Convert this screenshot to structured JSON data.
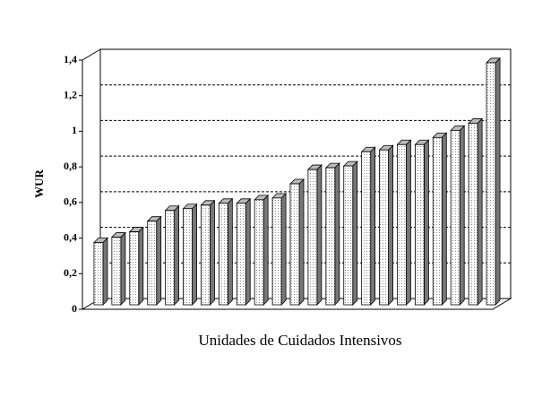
{
  "chart_data": {
    "type": "bar3d",
    "ylabel": "WUR",
    "xlabel": "Unidades de Cuidados Intensivos",
    "categories": [
      null,
      null,
      null,
      null,
      null,
      null,
      null,
      null,
      null,
      null,
      null,
      null,
      null,
      null,
      null,
      null,
      null,
      null,
      null,
      null,
      null,
      null,
      null
    ],
    "values": [
      0.35,
      0.38,
      0.41,
      0.47,
      0.53,
      0.54,
      0.56,
      0.57,
      0.57,
      0.59,
      0.6,
      0.68,
      0.76,
      0.77,
      0.78,
      0.86,
      0.87,
      0.9,
      0.9,
      0.94,
      0.98,
      1.02,
      1.36
    ],
    "color": "#ffffff",
    "ylim": [
      0,
      1.4
    ],
    "yticks": [
      0,
      {
        "value": 0.2,
        "label": "0,2"
      },
      {
        "value": 0.4,
        "label": "0,4"
      },
      {
        "value": 0.6,
        "label": "0,6"
      },
      {
        "value": 0.8,
        "label": "0,8"
      },
      1,
      {
        "value": 1.2,
        "label": "1,2"
      },
      {
        "value": 1.4,
        "label": "1,4"
      }
    ],
    "grid": true
  }
}
